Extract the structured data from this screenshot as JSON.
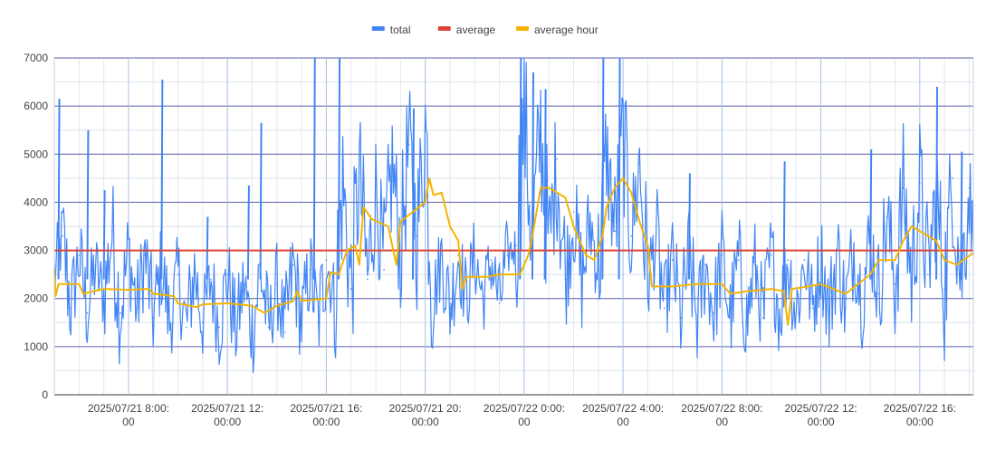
{
  "chart_data": {
    "type": "line",
    "title": "",
    "xlabel": "",
    "ylabel": "",
    "ylim": [
      0,
      7000
    ],
    "yticks": [
      0,
      1000,
      2000,
      3000,
      4000,
      5000,
      6000,
      7000
    ],
    "xlim": [
      "2025/07/21 05:00:00",
      "2025/07/22 18:10:00"
    ],
    "xticks": [
      {
        "value": "2025/07/21 08:00:00",
        "line1": "2025/07/21 8:00:",
        "line2": "00"
      },
      {
        "value": "2025/07/21 12:00:00",
        "line1": "2025/07/21 12:",
        "line2": "00:00"
      },
      {
        "value": "2025/07/21 16:00:00",
        "line1": "2025/07/21 16:",
        "line2": "00:00"
      },
      {
        "value": "2025/07/21 20:00:00",
        "line1": "2025/07/21 20:",
        "line2": "00:00"
      },
      {
        "value": "2025/07/22 00:00:00",
        "line1": "2025/07/22 0:00:",
        "line2": "00"
      },
      {
        "value": "2025/07/22 04:00:00",
        "line1": "2025/07/22 4:00:",
        "line2": "00"
      },
      {
        "value": "2025/07/22 08:00:00",
        "line1": "2025/07/22 8:00:",
        "line2": "00"
      },
      {
        "value": "2025/07/22 12:00:00",
        "line1": "2025/07/22 12:",
        "line2": "00:00"
      },
      {
        "value": "2025/07/22 16:00:00",
        "line1": "2025/07/22 16:",
        "line2": "00:00"
      }
    ],
    "grid": true,
    "legend_position": "top",
    "series": [
      {
        "name": "total",
        "color": "#4285f4",
        "points": [
          [
            "2025/07/21 05:00:00",
            2500
          ],
          [
            "2025/07/21 05:20:00",
            3300
          ],
          [
            "2025/07/21 05:40:00",
            1800
          ],
          [
            "2025/07/21 06:00:00",
            2900
          ],
          [
            "2025/07/21 06:20:00",
            1700
          ],
          [
            "2025/07/21 06:40:00",
            2700
          ],
          [
            "2025/07/21 07:00:00",
            2000
          ],
          [
            "2025/07/21 07:20:00",
            3400
          ],
          [
            "2025/07/21 07:40:00",
            1700
          ],
          [
            "2025/07/21 08:00:00",
            3000
          ],
          [
            "2025/07/21 08:20:00",
            1800
          ],
          [
            "2025/07/21 08:40:00",
            2900
          ],
          [
            "2025/07/21 09:00:00",
            1600
          ],
          [
            "2025/07/21 09:20:00",
            2700
          ],
          [
            "2025/07/21 09:40:00",
            1500
          ],
          [
            "2025/07/21 10:00:00",
            2500
          ],
          [
            "2025/07/21 10:20:00",
            1400
          ],
          [
            "2025/07/21 10:40:00",
            2600
          ],
          [
            "2025/07/21 11:00:00",
            1500
          ],
          [
            "2025/07/21 11:20:00",
            2400
          ],
          [
            "2025/07/21 11:40:00",
            1400
          ],
          [
            "2025/07/21 12:00:00",
            2500
          ],
          [
            "2025/07/21 12:20:00",
            1300
          ],
          [
            "2025/07/21 12:40:00",
            2300
          ],
          [
            "2025/07/21 13:00:00",
            1300
          ],
          [
            "2025/07/21 13:20:00",
            2600
          ],
          [
            "2025/07/21 13:40:00",
            1400
          ],
          [
            "2025/07/21 14:00:00",
            2300
          ],
          [
            "2025/07/21 14:20:00",
            1300
          ],
          [
            "2025/07/21 14:40:00",
            2700
          ],
          [
            "2025/07/21 15:00:00",
            1500
          ],
          [
            "2025/07/21 15:20:00",
            2600
          ],
          [
            "2025/07/21 15:40:00",
            1500
          ],
          [
            "2025/07/21 16:00:00",
            2800
          ],
          [
            "2025/07/21 16:20:00",
            2000
          ],
          [
            "2025/07/21 16:40:00",
            4400
          ],
          [
            "2025/07/21 17:00:00",
            2200
          ],
          [
            "2025/07/21 17:20:00",
            4600
          ],
          [
            "2025/07/21 17:40:00",
            2400
          ],
          [
            "2025/07/21 18:00:00",
            4300
          ],
          [
            "2025/07/21 18:20:00",
            2600
          ],
          [
            "2025/07/21 18:40:00",
            4800
          ],
          [
            "2025/07/21 19:00:00",
            3000
          ],
          [
            "2025/07/21 19:20:00",
            5200
          ],
          [
            "2025/07/21 19:40:00",
            3300
          ],
          [
            "2025/07/21 20:00:00",
            5600
          ],
          [
            "2025/07/21 20:20:00",
            2000
          ],
          [
            "2025/07/21 20:40:00",
            2900
          ],
          [
            "2025/07/21 21:00:00",
            1800
          ],
          [
            "2025/07/21 21:20:00",
            2900
          ],
          [
            "2025/07/21 21:40:00",
            2000
          ],
          [
            "2025/07/21 22:00:00",
            2900
          ],
          [
            "2025/07/21 22:20:00",
            2000
          ],
          [
            "2025/07/21 22:40:00",
            2800
          ],
          [
            "2025/07/21 23:00:00",
            1900
          ],
          [
            "2025/07/21 23:20:00",
            2900
          ],
          [
            "2025/07/21 23:40:00",
            3100
          ],
          [
            "2025/07/22 00:00:00",
            5900
          ],
          [
            "2025/07/22 00:20:00",
            3200
          ],
          [
            "2025/07/22 00:40:00",
            5500
          ],
          [
            "2025/07/22 01:00:00",
            3000
          ],
          [
            "2025/07/22 01:20:00",
            4900
          ],
          [
            "2025/07/22 01:40:00",
            2400
          ],
          [
            "2025/07/22 02:00:00",
            3800
          ],
          [
            "2025/07/22 02:20:00",
            2300
          ],
          [
            "2025/07/22 02:40:00",
            3600
          ],
          [
            "2025/07/22 03:00:00",
            2600
          ],
          [
            "2025/07/22 03:20:00",
            5000
          ],
          [
            "2025/07/22 03:40:00",
            3400
          ],
          [
            "2025/07/22 04:00:00",
            5400
          ],
          [
            "2025/07/22 04:20:00",
            3300
          ],
          [
            "2025/07/22 04:40:00",
            4800
          ],
          [
            "2025/07/22 05:00:00",
            2300
          ],
          [
            "2025/07/22 05:20:00",
            3300
          ],
          [
            "2025/07/22 05:40:00",
            1800
          ],
          [
            "2025/07/22 06:00:00",
            2800
          ],
          [
            "2025/07/22 06:20:00",
            1600
          ],
          [
            "2025/07/22 06:40:00",
            2900
          ],
          [
            "2025/07/22 07:00:00",
            1500
          ],
          [
            "2025/07/22 07:20:00",
            2700
          ],
          [
            "2025/07/22 07:40:00",
            1700
          ],
          [
            "2025/07/22 08:00:00",
            2900
          ],
          [
            "2025/07/22 08:20:00",
            1600
          ],
          [
            "2025/07/22 08:40:00",
            2800
          ],
          [
            "2025/07/22 09:00:00",
            1500
          ],
          [
            "2025/07/22 09:20:00",
            2700
          ],
          [
            "2025/07/22 09:40:00",
            1600
          ],
          [
            "2025/07/22 10:00:00",
            2900
          ],
          [
            "2025/07/22 10:20:00",
            1700
          ],
          [
            "2025/07/22 10:40:00",
            2800
          ],
          [
            "2025/07/22 11:00:00",
            1700
          ],
          [
            "2025/07/22 11:20:00",
            2800
          ],
          [
            "2025/07/22 11:40:00",
            1800
          ],
          [
            "2025/07/22 12:00:00",
            2900
          ],
          [
            "2025/07/22 12:20:00",
            1700
          ],
          [
            "2025/07/22 12:40:00",
            3000
          ],
          [
            "2025/07/22 13:00:00",
            1800
          ],
          [
            "2025/07/22 13:20:00",
            3100
          ],
          [
            "2025/07/22 13:40:00",
            2000
          ],
          [
            "2025/07/22 14:00:00",
            3300
          ],
          [
            "2025/07/22 14:20:00",
            2100
          ],
          [
            "2025/07/22 14:40:00",
            3700
          ],
          [
            "2025/07/22 15:00:00",
            2300
          ],
          [
            "2025/07/22 15:20:00",
            4300
          ],
          [
            "2025/07/22 15:40:00",
            2400
          ],
          [
            "2025/07/22 16:00:00",
            4400
          ],
          [
            "2025/07/22 16:20:00",
            2500
          ],
          [
            "2025/07/22 16:40:00",
            4200
          ],
          [
            "2025/07/22 17:00:00",
            2200
          ],
          [
            "2025/07/22 17:20:00",
            4500
          ],
          [
            "2025/07/22 17:40:00",
            2400
          ],
          [
            "2025/07/22 18:00:00",
            4300
          ],
          [
            "2025/07/22 18:10:00",
            2900
          ]
        ],
        "spikes": [
          [
            "2025/07/21 05:10:00",
            6150
          ],
          [
            "2025/07/21 06:20:00",
            5500
          ],
          [
            "2025/07/21 07:00:00",
            4250
          ],
          [
            "2025/07/21 09:20:00",
            6550
          ],
          [
            "2025/07/21 11:10:00",
            3700
          ],
          [
            "2025/07/21 12:50:00",
            4350
          ],
          [
            "2025/07/21 13:20:00",
            5650
          ],
          [
            "2025/07/21 15:30:00",
            7000
          ],
          [
            "2025/07/21 16:30:00",
            7000
          ],
          [
            "2025/07/21 19:30:00",
            5950
          ],
          [
            "2025/07/21 23:50:00",
            7000
          ],
          [
            "2025/07/22 00:20:00",
            6700
          ],
          [
            "2025/07/22 00:50:00",
            6350
          ],
          [
            "2025/07/22 03:10:00",
            7000
          ],
          [
            "2025/07/22 03:50:00",
            7000
          ],
          [
            "2025/07/22 06:40:00",
            4600
          ],
          [
            "2025/07/22 10:30:00",
            4850
          ],
          [
            "2025/07/22 14:00:00",
            5100
          ],
          [
            "2025/07/22 16:40:00",
            6400
          ],
          [
            "2025/07/22 17:40:00",
            5050
          ]
        ]
      },
      {
        "name": "average",
        "color": "#db4437",
        "points": [
          [
            "2025/07/21 05:00:00",
            3000
          ],
          [
            "2025/07/22 18:10:00",
            3000
          ]
        ]
      },
      {
        "name": "average hour",
        "color": "#f4b400",
        "points": [
          [
            "2025/07/21 05:00:00",
            2600
          ],
          [
            "2025/07/21 05:03:00",
            2050
          ],
          [
            "2025/07/21 05:10:00",
            2300
          ],
          [
            "2025/07/21 06:00:00",
            2300
          ],
          [
            "2025/07/21 06:10:00",
            2100
          ],
          [
            "2025/07/21 07:00:00",
            2200
          ],
          [
            "2025/07/21 08:00:00",
            2180
          ],
          [
            "2025/07/21 08:50:00",
            2200
          ],
          [
            "2025/07/21 09:00:00",
            2100
          ],
          [
            "2025/07/21 09:50:00",
            2050
          ],
          [
            "2025/07/21 10:00:00",
            1900
          ],
          [
            "2025/07/21 10:30:00",
            1850
          ],
          [
            "2025/07/21 10:45:00",
            1820
          ],
          [
            "2025/07/21 11:00:00",
            1880
          ],
          [
            "2025/07/21 12:00:00",
            1900
          ],
          [
            "2025/07/21 13:00:00",
            1850
          ],
          [
            "2025/07/21 13:30:00",
            1700
          ],
          [
            "2025/07/21 14:00:00",
            1850
          ],
          [
            "2025/07/21 14:40:00",
            1950
          ],
          [
            "2025/07/21 14:50:00",
            2150
          ],
          [
            "2025/07/21 15:00:00",
            1950
          ],
          [
            "2025/07/21 16:00:00",
            2000
          ],
          [
            "2025/07/21 16:10:00",
            2550
          ],
          [
            "2025/07/21 16:30:00",
            2500
          ],
          [
            "2025/07/21 16:50:00",
            3000
          ],
          [
            "2025/07/21 17:10:00",
            3100
          ],
          [
            "2025/07/21 17:20:00",
            2700
          ],
          [
            "2025/07/21 17:30:00",
            3900
          ],
          [
            "2025/07/21 17:50:00",
            3650
          ],
          [
            "2025/07/21 18:30:00",
            3500
          ],
          [
            "2025/07/21 18:50:00",
            2700
          ],
          [
            "2025/07/21 19:00:00",
            3600
          ],
          [
            "2025/07/21 19:30:00",
            3800
          ],
          [
            "2025/07/21 20:00:00",
            4000
          ],
          [
            "2025/07/21 20:10:00",
            4500
          ],
          [
            "2025/07/21 20:20:00",
            4150
          ],
          [
            "2025/07/21 20:40:00",
            4200
          ],
          [
            "2025/07/21 21:00:00",
            3500
          ],
          [
            "2025/07/21 21:20:00",
            3200
          ],
          [
            "2025/07/21 21:30:00",
            2200
          ],
          [
            "2025/07/21 21:40:00",
            2450
          ],
          [
            "2025/07/21 22:30:00",
            2450
          ],
          [
            "2025/07/21 23:00:00",
            2500
          ],
          [
            "2025/07/21 23:50:00",
            2500
          ],
          [
            "2025/07/22 00:10:00",
            2900
          ],
          [
            "2025/07/22 00:20:00",
            3300
          ],
          [
            "2025/07/22 00:40:00",
            4300
          ],
          [
            "2025/07/22 01:00:00",
            4300
          ],
          [
            "2025/07/22 01:40:00",
            4100
          ],
          [
            "2025/07/22 02:00:00",
            3500
          ],
          [
            "2025/07/22 02:30:00",
            2900
          ],
          [
            "2025/07/22 02:50:00",
            2800
          ],
          [
            "2025/07/22 03:10:00",
            3300
          ],
          [
            "2025/07/22 03:20:00",
            3900
          ],
          [
            "2025/07/22 03:40:00",
            4300
          ],
          [
            "2025/07/22 04:00:00",
            4500
          ],
          [
            "2025/07/22 04:20:00",
            4200
          ],
          [
            "2025/07/22 04:40:00",
            3600
          ],
          [
            "2025/07/22 05:00:00",
            3100
          ],
          [
            "2025/07/22 05:10:00",
            2250
          ],
          [
            "2025/07/22 06:00:00",
            2250
          ],
          [
            "2025/07/22 07:00:00",
            2300
          ],
          [
            "2025/07/22 08:00:00",
            2300
          ],
          [
            "2025/07/22 08:20:00",
            2100
          ],
          [
            "2025/07/22 09:00:00",
            2150
          ],
          [
            "2025/07/22 10:00:00",
            2200
          ],
          [
            "2025/07/22 10:30:00",
            2150
          ],
          [
            "2025/07/22 10:40:00",
            1450
          ],
          [
            "2025/07/22 10:50:00",
            2200
          ],
          [
            "2025/07/22 11:30:00",
            2250
          ],
          [
            "2025/07/22 12:00:00",
            2300
          ],
          [
            "2025/07/22 12:30:00",
            2200
          ],
          [
            "2025/07/22 13:00:00",
            2100
          ],
          [
            "2025/07/22 13:30:00",
            2300
          ],
          [
            "2025/07/22 14:00:00",
            2500
          ],
          [
            "2025/07/22 14:20:00",
            2800
          ],
          [
            "2025/07/22 15:00:00",
            2800
          ],
          [
            "2025/07/22 15:20:00",
            3200
          ],
          [
            "2025/07/22 15:40:00",
            3500
          ],
          [
            "2025/07/22 16:00:00",
            3400
          ],
          [
            "2025/07/22 16:40:00",
            3200
          ],
          [
            "2025/07/22 17:00:00",
            2800
          ],
          [
            "2025/07/22 17:30:00",
            2700
          ],
          [
            "2025/07/22 18:10:00",
            2950
          ]
        ]
      }
    ]
  }
}
